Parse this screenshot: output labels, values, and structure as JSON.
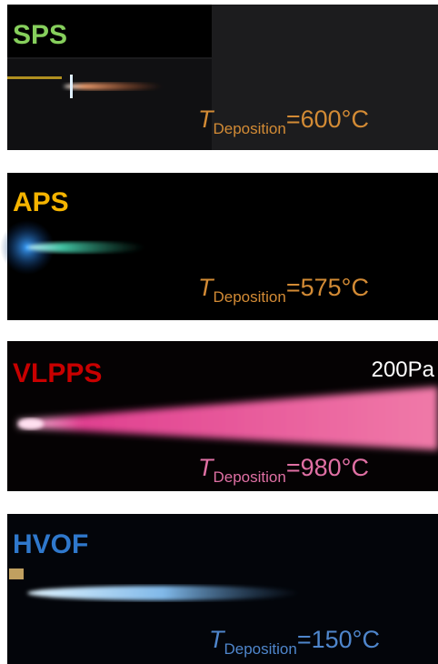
{
  "panels": [
    {
      "label": "SPS",
      "label_color": "#86cf5c",
      "symbol": "T",
      "subscript": "Deposition",
      "value": "=600°C",
      "text_color": "#d38b35"
    },
    {
      "label": "APS",
      "label_color": "#f5b400",
      "symbol": "T",
      "subscript": "Deposition",
      "value": "=575°C",
      "text_color": "#d38b35"
    },
    {
      "label": "VLPPS",
      "label_color": "#c80000",
      "symbol": "T",
      "subscript": "Deposition",
      "value": "=980°C",
      "text_color": "#e070a4",
      "pressure": "200Pa"
    },
    {
      "label": "HVOF",
      "label_color": "#2f78cc",
      "symbol": "T",
      "subscript": "Deposition",
      "value": "=150°C",
      "text_color": "#4f86cc"
    }
  ]
}
